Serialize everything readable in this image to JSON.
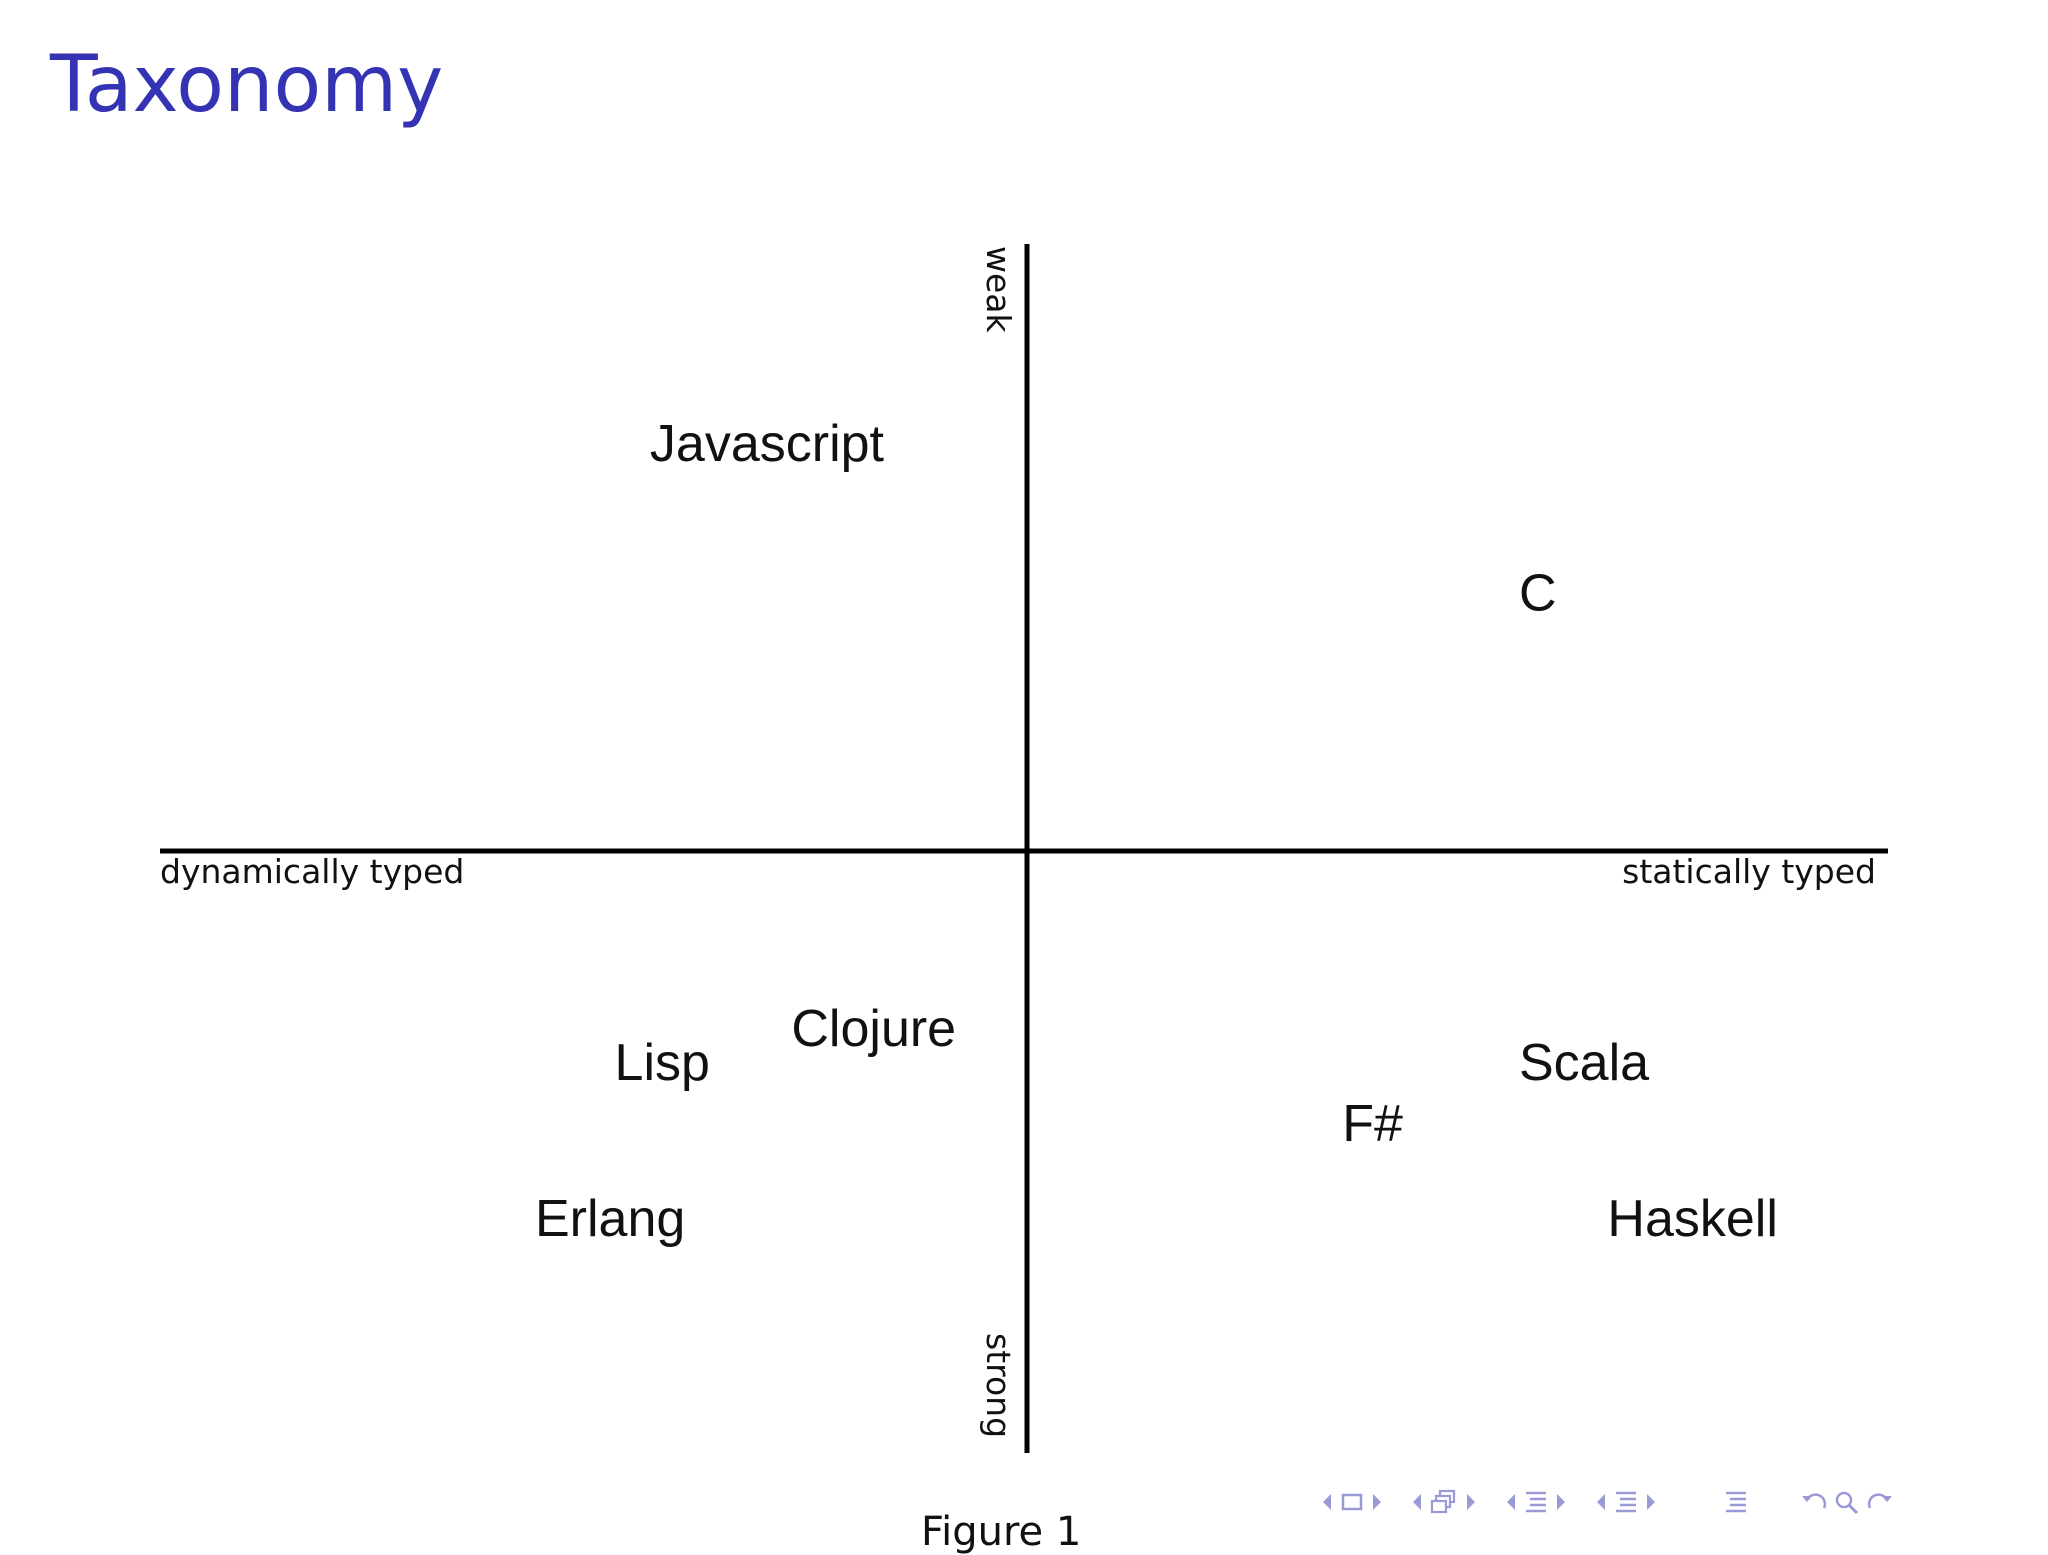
{
  "slide": {
    "title": "Taxonomy"
  },
  "diagram": {
    "axes": {
      "top": "weak",
      "bottom": "strong",
      "left": "dynamically typed",
      "right": "statically typed"
    },
    "languages": [
      {
        "name": "Javascript",
        "x": -0.74,
        "y": 0.6
      },
      {
        "name": "C",
        "x": 1.0,
        "y": 0.38
      },
      {
        "name": "Clojure",
        "x": -0.42,
        "y": -0.26
      },
      {
        "name": "Lisp",
        "x": -0.82,
        "y": -0.31
      },
      {
        "name": "Scala",
        "x": 1.0,
        "y": -0.31
      },
      {
        "name": "F#",
        "x": 0.6,
        "y": -0.4
      },
      {
        "name": "Erlang",
        "x": -1.0,
        "y": -0.54
      },
      {
        "name": "Haskell",
        "x": 1.2,
        "y": -0.54
      }
    ]
  },
  "caption": {
    "text": "Figure 1"
  },
  "nav": {
    "color": "#9a9ad6",
    "icons": [
      "prev-frame-arrow-icon",
      "frame-icon",
      "next-frame-arrow-icon",
      "prev-subsection-arrow-icon",
      "subsection-icon",
      "next-subsection-arrow-icon",
      "prev-section-arrow-icon",
      "section-icon",
      "next-section-arrow-icon",
      "prev-slide-arrow-icon",
      "slide-icon",
      "next-slide-arrow-icon",
      "toc-icon",
      "back-icon",
      "search-icon",
      "forward-icon"
    ]
  }
}
